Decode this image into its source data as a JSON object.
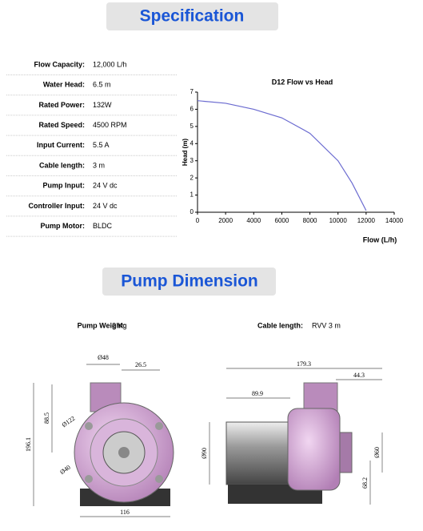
{
  "banners": [
    "Specification",
    "Pump Dimension"
  ],
  "specs": [
    {
      "label": "Flow Capacity:",
      "value": "12,000 L/h"
    },
    {
      "label": "Water Head:",
      "value": "6.5 m"
    },
    {
      "label": "Rated Power:",
      "value": "132W"
    },
    {
      "label": "Rated Speed:",
      "value": "4500 RPM"
    },
    {
      "label": "Input Current:",
      "value": "5.5 A"
    },
    {
      "label": "Cable length:",
      "value": "3 m"
    },
    {
      "label": "Pump Input:",
      "value": "24 V dc"
    },
    {
      "label": "Controller Input:",
      "value": "24 V dc"
    },
    {
      "label": "Pump  Motor:",
      "value": "BLDC"
    }
  ],
  "chart_data": {
    "type": "line",
    "title": "D12 Flow vs Head",
    "x_label": "Flow (L/h)",
    "y_label": "Head (m)",
    "x": [
      0,
      2000,
      4000,
      6000,
      8000,
      10000,
      11000,
      12000
    ],
    "values": [
      6.5,
      6.35,
      6.0,
      5.5,
      4.6,
      3.0,
      1.7,
      0.1
    ],
    "color": "#6b6bd0",
    "xlim": [
      0,
      14000
    ],
    "xticks": [
      0,
      2000,
      4000,
      6000,
      8000,
      10000,
      12000,
      14000
    ],
    "ylim": [
      0,
      7
    ],
    "yticks": [
      0,
      1,
      2,
      3,
      4,
      5,
      6,
      7
    ]
  },
  "pump_info": [
    {
      "label": "Pump Weight:",
      "value": "2 Kg"
    },
    {
      "label": "Cable length:",
      "value": "RVV 3 m"
    }
  ],
  "front_view": {
    "dimensions": [
      "Ø48",
      "26.5",
      "88.5",
      "196.1",
      "Ø122",
      "Ø40",
      "116"
    ]
  },
  "side_view": {
    "dimensions": [
      "179.3",
      "44.3",
      "89.9",
      "Ø90",
      "Ø60",
      "68.2"
    ]
  }
}
